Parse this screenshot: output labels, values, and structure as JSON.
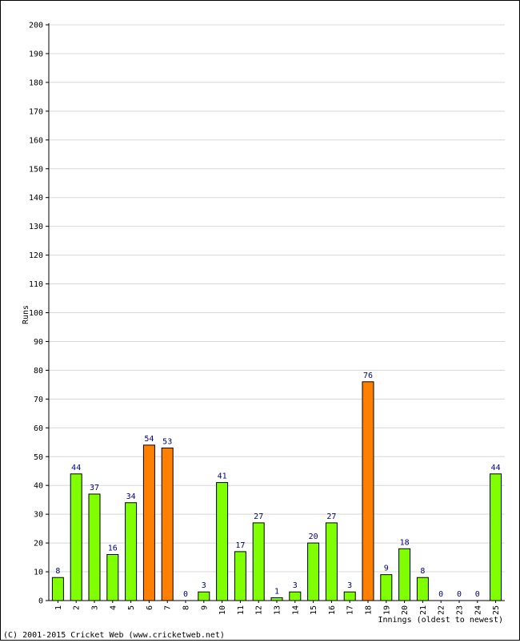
{
  "chart_data": {
    "type": "bar",
    "title": "",
    "xlabel": "Innings (oldest to newest)",
    "ylabel": "Runs",
    "ylim": [
      0,
      200
    ],
    "ytick_step": 10,
    "grid": true,
    "categories": [
      "1",
      "2",
      "3",
      "4",
      "5",
      "6",
      "7",
      "8",
      "9",
      "10",
      "11",
      "12",
      "13",
      "14",
      "15",
      "16",
      "17",
      "18",
      "19",
      "20",
      "21",
      "22",
      "23",
      "24",
      "25"
    ],
    "values": [
      8,
      44,
      37,
      16,
      34,
      54,
      53,
      0,
      3,
      41,
      17,
      27,
      1,
      3,
      20,
      27,
      3,
      76,
      9,
      18,
      8,
      0,
      0,
      0,
      44
    ],
    "colors": {
      "bar_default": "#80ff00",
      "bar_highlight": "#ff8000",
      "value_label": "#000080",
      "grid": "#d8d8d8"
    },
    "highlight_rule": "values >= 50 shown in orange"
  },
  "footer": {
    "copyright": "(C) 2001-2015 Cricket Web (www.cricketweb.net)"
  }
}
